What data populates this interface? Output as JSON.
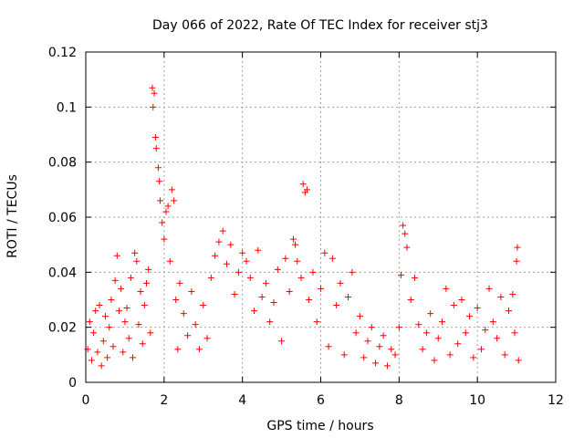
{
  "chart_data": {
    "type": "scatter",
    "title": "Day 066 of 2022, Rate Of TEC Index for receiver stj3",
    "xlabel": "GPS time / hours",
    "ylabel": "ROTI / TECUs",
    "xlim": [
      0,
      12
    ],
    "ylim": [
      0,
      0.12
    ],
    "xticks": [
      0,
      2,
      4,
      6,
      8,
      10,
      12
    ],
    "yticks": [
      0,
      0.02,
      0.04,
      0.06,
      0.08,
      0.1,
      0.12
    ],
    "grid": true,
    "marker": "+",
    "color": "#ff0000",
    "series": [
      {
        "name": "ROTI",
        "points": [
          [
            0.05,
            0.012
          ],
          [
            0.1,
            0.022
          ],
          [
            0.15,
            0.008
          ],
          [
            0.2,
            0.018
          ],
          [
            0.25,
            0.026
          ],
          [
            0.3,
            0.011
          ],
          [
            0.35,
            0.028
          ],
          [
            0.4,
            0.006
          ],
          [
            0.45,
            0.015
          ],
          [
            0.5,
            0.024
          ],
          [
            0.55,
            0.009
          ],
          [
            0.6,
            0.02
          ],
          [
            0.65,
            0.03
          ],
          [
            0.7,
            0.013
          ],
          [
            0.75,
            0.037
          ],
          [
            0.8,
            0.046
          ],
          [
            0.85,
            0.026
          ],
          [
            0.9,
            0.034
          ],
          [
            0.95,
            0.011
          ],
          [
            1.0,
            0.022
          ],
          [
            1.05,
            0.027
          ],
          [
            1.1,
            0.016
          ],
          [
            1.15,
            0.038
          ],
          [
            1.2,
            0.009
          ],
          [
            1.25,
            0.047
          ],
          [
            1.3,
            0.044
          ],
          [
            1.35,
            0.021
          ],
          [
            1.4,
            0.033
          ],
          [
            1.45,
            0.014
          ],
          [
            1.5,
            0.028
          ],
          [
            1.55,
            0.036
          ],
          [
            1.6,
            0.041
          ],
          [
            1.65,
            0.018
          ],
          [
            1.7,
            0.107
          ],
          [
            1.72,
            0.1
          ],
          [
            1.75,
            0.105
          ],
          [
            1.78,
            0.089
          ],
          [
            1.8,
            0.085
          ],
          [
            1.85,
            0.078
          ],
          [
            1.88,
            0.073
          ],
          [
            1.9,
            0.066
          ],
          [
            1.95,
            0.058
          ],
          [
            2.0,
            0.052
          ],
          [
            2.05,
            0.062
          ],
          [
            2.1,
            0.064
          ],
          [
            2.15,
            0.044
          ],
          [
            2.2,
            0.07
          ],
          [
            2.25,
            0.066
          ],
          [
            2.3,
            0.03
          ],
          [
            2.35,
            0.012
          ],
          [
            2.4,
            0.036
          ],
          [
            2.5,
            0.025
          ],
          [
            2.6,
            0.017
          ],
          [
            2.7,
            0.033
          ],
          [
            2.8,
            0.021
          ],
          [
            2.9,
            0.012
          ],
          [
            3.0,
            0.028
          ],
          [
            3.1,
            0.016
          ],
          [
            3.2,
            0.038
          ],
          [
            3.3,
            0.046
          ],
          [
            3.4,
            0.051
          ],
          [
            3.5,
            0.055
          ],
          [
            3.6,
            0.043
          ],
          [
            3.7,
            0.05
          ],
          [
            3.8,
            0.032
          ],
          [
            3.9,
            0.04
          ],
          [
            4.0,
            0.047
          ],
          [
            4.1,
            0.044
          ],
          [
            4.2,
            0.038
          ],
          [
            4.3,
            0.026
          ],
          [
            4.4,
            0.048
          ],
          [
            4.5,
            0.031
          ],
          [
            4.6,
            0.036
          ],
          [
            4.7,
            0.022
          ],
          [
            4.8,
            0.029
          ],
          [
            4.9,
            0.041
          ],
          [
            5.0,
            0.015
          ],
          [
            5.1,
            0.045
          ],
          [
            5.2,
            0.033
          ],
          [
            5.3,
            0.052
          ],
          [
            5.35,
            0.05
          ],
          [
            5.4,
            0.044
          ],
          [
            5.5,
            0.038
          ],
          [
            5.55,
            0.072
          ],
          [
            5.6,
            0.069
          ],
          [
            5.65,
            0.07
          ],
          [
            5.7,
            0.03
          ],
          [
            5.8,
            0.04
          ],
          [
            5.9,
            0.022
          ],
          [
            6.0,
            0.034
          ],
          [
            6.1,
            0.047
          ],
          [
            6.2,
            0.013
          ],
          [
            6.3,
            0.045
          ],
          [
            6.4,
            0.028
          ],
          [
            6.5,
            0.036
          ],
          [
            6.6,
            0.01
          ],
          [
            6.7,
            0.031
          ],
          [
            6.8,
            0.04
          ],
          [
            6.9,
            0.018
          ],
          [
            7.0,
            0.024
          ],
          [
            7.1,
            0.009
          ],
          [
            7.2,
            0.015
          ],
          [
            7.3,
            0.02
          ],
          [
            7.4,
            0.007
          ],
          [
            7.5,
            0.013
          ],
          [
            7.6,
            0.017
          ],
          [
            7.7,
            0.006
          ],
          [
            7.8,
            0.012
          ],
          [
            7.9,
            0.01
          ],
          [
            8.0,
            0.02
          ],
          [
            8.05,
            0.039
          ],
          [
            8.1,
            0.057
          ],
          [
            8.15,
            0.054
          ],
          [
            8.2,
            0.049
          ],
          [
            8.3,
            0.03
          ],
          [
            8.4,
            0.038
          ],
          [
            8.5,
            0.021
          ],
          [
            8.6,
            0.012
          ],
          [
            8.7,
            0.018
          ],
          [
            8.8,
            0.025
          ],
          [
            8.9,
            0.008
          ],
          [
            9.0,
            0.016
          ],
          [
            9.1,
            0.022
          ],
          [
            9.2,
            0.034
          ],
          [
            9.3,
            0.01
          ],
          [
            9.4,
            0.028
          ],
          [
            9.5,
            0.014
          ],
          [
            9.6,
            0.03
          ],
          [
            9.7,
            0.018
          ],
          [
            9.8,
            0.024
          ],
          [
            9.9,
            0.009
          ],
          [
            10.0,
            0.027
          ],
          [
            10.1,
            0.012
          ],
          [
            10.2,
            0.019
          ],
          [
            10.3,
            0.034
          ],
          [
            10.4,
            0.022
          ],
          [
            10.5,
            0.016
          ],
          [
            10.6,
            0.031
          ],
          [
            10.7,
            0.01
          ],
          [
            10.8,
            0.026
          ],
          [
            10.9,
            0.032
          ],
          [
            10.95,
            0.018
          ],
          [
            11.0,
            0.044
          ],
          [
            11.02,
            0.049
          ],
          [
            11.05,
            0.008
          ]
        ]
      }
    ]
  }
}
